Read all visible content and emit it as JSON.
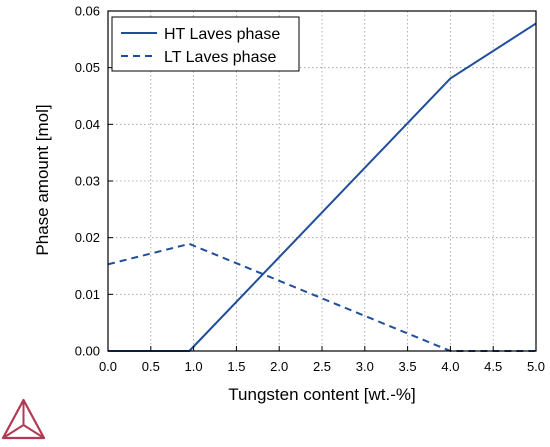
{
  "chart_data": {
    "type": "line",
    "title": "",
    "xlabel": "Tungsten content [wt.-%]",
    "ylabel": "Phase amount [mol]",
    "xlim": [
      0.0,
      5.0
    ],
    "ylim": [
      0.0,
      0.06
    ],
    "xticks": [
      "0.0",
      "0.5",
      "1.0",
      "1.5",
      "2.0",
      "2.5",
      "3.0",
      "3.5",
      "4.0",
      "4.5",
      "5.0"
    ],
    "yticks": [
      "0.00",
      "0.01",
      "0.02",
      "0.03",
      "0.04",
      "0.05",
      "0.06"
    ],
    "grid": "dotted",
    "legend_position": "top-left",
    "series": [
      {
        "name": "HT Laves phase",
        "style": "solid",
        "color": "#1f4e9a",
        "x": [
          0.0,
          0.95,
          4.0,
          5.0
        ],
        "y": [
          0.0,
          0.0,
          0.0481,
          0.0578
        ]
      },
      {
        "name": "LT Laves phase",
        "style": "dashed",
        "color": "#1f4e9a",
        "x": [
          0.0,
          0.95,
          4.0,
          5.0
        ],
        "y": [
          0.0153,
          0.0189,
          0.0,
          0.0
        ]
      }
    ]
  },
  "logo": {
    "icon": "thermo-calc-triangle-logo",
    "color": "#b03a55"
  }
}
